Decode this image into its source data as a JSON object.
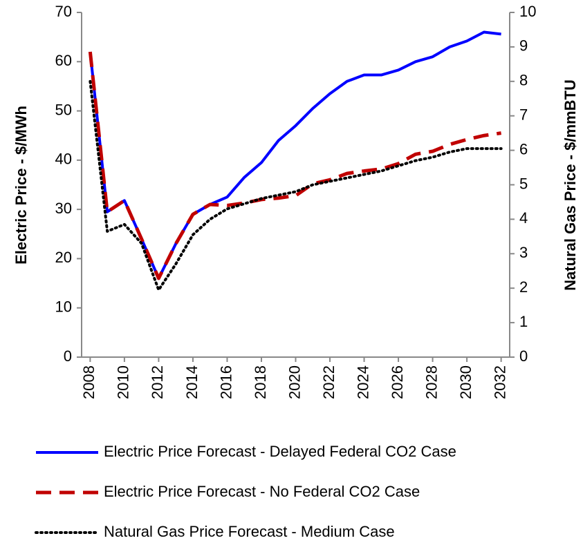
{
  "chart_data": {
    "type": "line",
    "x": [
      2008,
      2009,
      2010,
      2011,
      2012,
      2013,
      2014,
      2015,
      2016,
      2017,
      2018,
      2019,
      2020,
      2021,
      2022,
      2023,
      2024,
      2025,
      2026,
      2027,
      2028,
      2029,
      2030,
      2031,
      2032
    ],
    "xlim": [
      2007.5,
      2032.5
    ],
    "xticks": [
      2008,
      2010,
      2012,
      2014,
      2016,
      2018,
      2020,
      2022,
      2024,
      2026,
      2028,
      2030,
      2032
    ],
    "ylabel": "Electric Price - $/MWh",
    "y2label": "Natural Gas Price - $/mmBTU",
    "ylim": [
      0,
      70
    ],
    "yticks": [
      0,
      10,
      20,
      30,
      40,
      50,
      60,
      70
    ],
    "y2lim": [
      0,
      10
    ],
    "y2ticks": [
      0,
      1,
      2,
      3,
      4,
      5,
      6,
      7,
      8,
      9,
      10
    ],
    "grid": false,
    "legend": "bottom",
    "series": [
      {
        "name": "Electric Price Forecast - Delayed Federal CO2 Case",
        "color": "#0000ff",
        "line_style": "solid",
        "values": [
          62,
          29.5,
          31.8,
          24,
          16,
          23,
          29,
          31,
          32.5,
          36.5,
          39.5,
          44,
          47,
          50.5,
          53.5,
          56,
          57.3,
          57.3,
          58.3,
          60,
          61,
          63,
          64.2,
          66,
          65.6
        ]
      },
      {
        "name": "Electric Price Forecast - No Federal CO2 Case",
        "color": "#c00000",
        "line_style": "dashed",
        "values": [
          62,
          29.5,
          31.8,
          24,
          16,
          23,
          29,
          31,
          30.8,
          31.3,
          32,
          32.3,
          32.8,
          35.2,
          36,
          37.3,
          37.8,
          38.2,
          39.3,
          41.2,
          41.8,
          43.2,
          44.2,
          45,
          45.5
        ]
      },
      {
        "name": "Natural Gas Price Forecast - Medium Case",
        "color": "#000000",
        "line_style": "dotted",
        "axis": "y2",
        "values": [
          8.0,
          3.65,
          3.85,
          3.3,
          1.95,
          2.7,
          3.55,
          4.0,
          4.3,
          4.45,
          4.6,
          4.7,
          4.8,
          5.0,
          5.1,
          5.2,
          5.3,
          5.4,
          5.55,
          5.7,
          5.8,
          5.95,
          6.05,
          6.05,
          6.05
        ]
      }
    ]
  }
}
